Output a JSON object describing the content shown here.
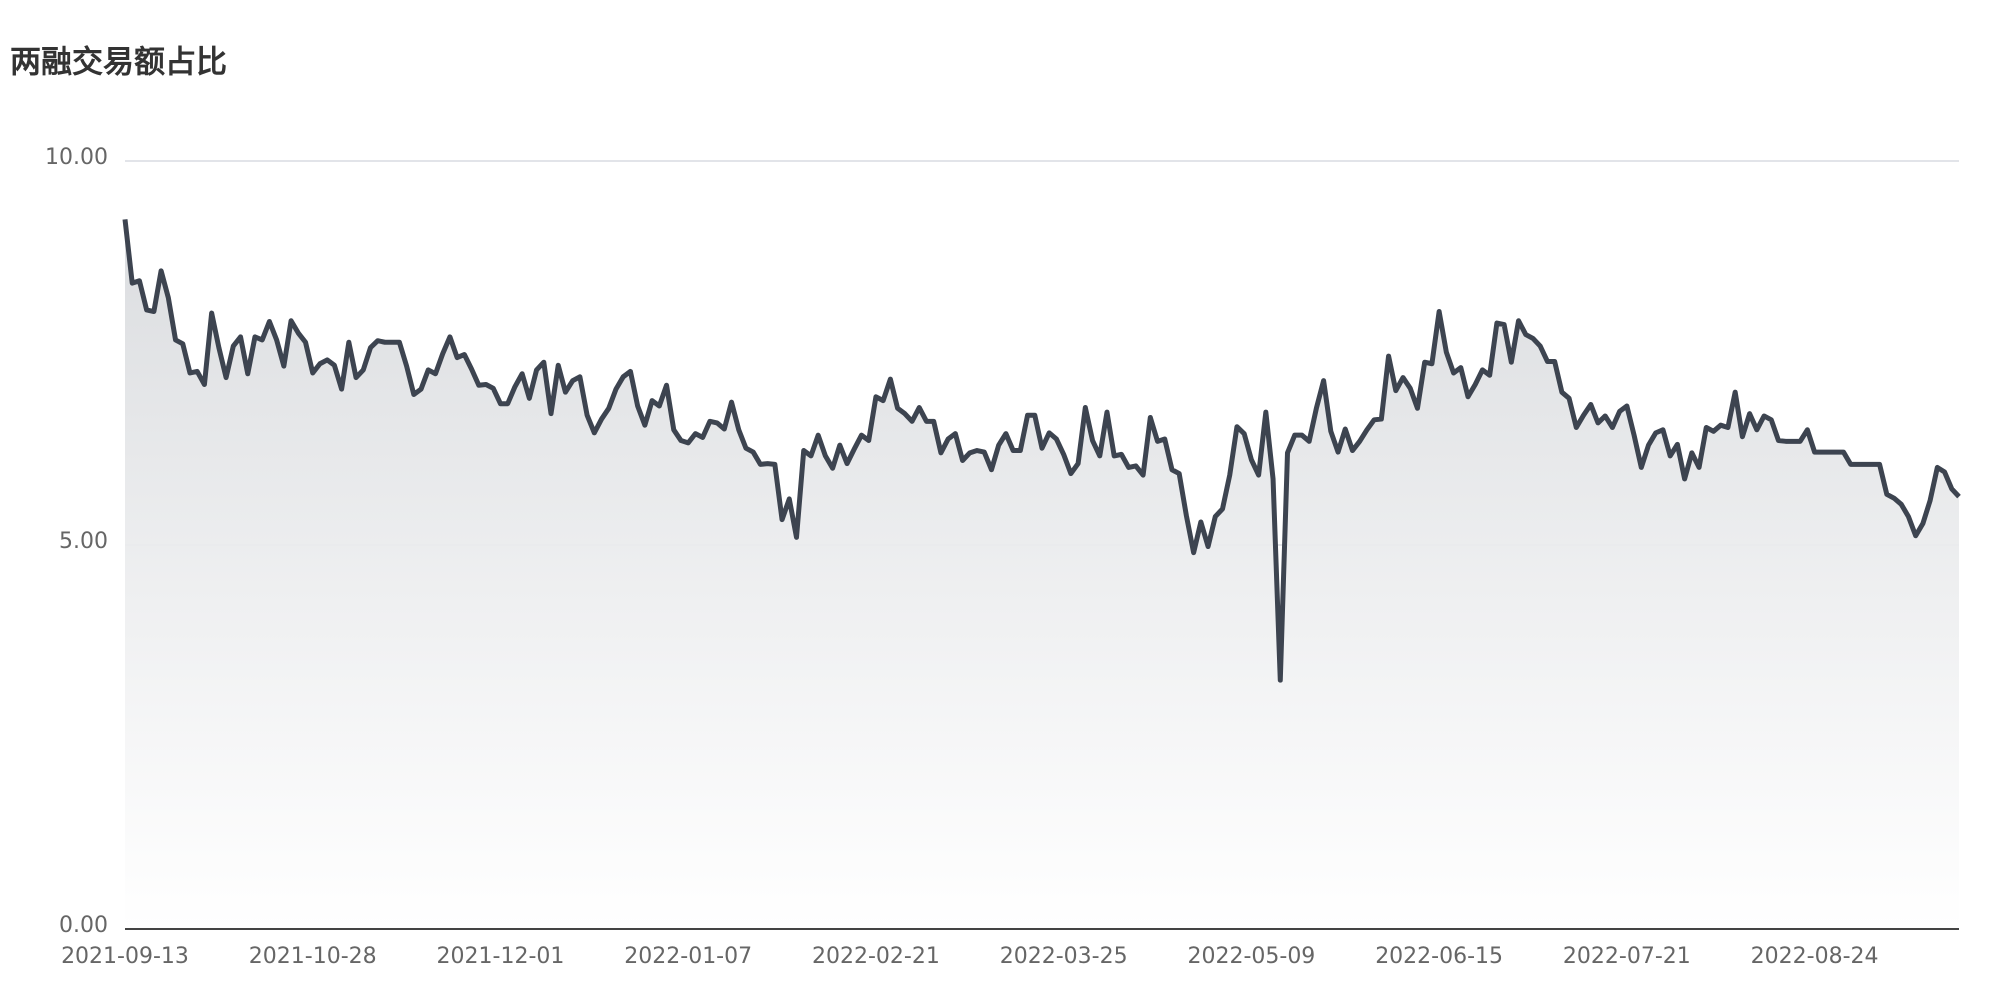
{
  "chart_data": {
    "type": "line",
    "title": "两融交易额占比",
    "categories": [
      "2021-09-13",
      null,
      null,
      null,
      null,
      null,
      null,
      null,
      null,
      null,
      null,
      null,
      null,
      null,
      null,
      null,
      null,
      null,
      null,
      null,
      null,
      null,
      null,
      null,
      null,
      null,
      "2021-10-28",
      null,
      null,
      null,
      null,
      null,
      null,
      null,
      null,
      null,
      null,
      null,
      null,
      null,
      null,
      null,
      null,
      null,
      null,
      null,
      null,
      null,
      null,
      null,
      null,
      null,
      "2021-12-01",
      null,
      null,
      null,
      null,
      null,
      null,
      null,
      null,
      null,
      null,
      null,
      null,
      null,
      null,
      null,
      null,
      null,
      null,
      null,
      null,
      null,
      null,
      null,
      null,
      null,
      "2022-01-07",
      null,
      null,
      null,
      null,
      null,
      null,
      null,
      null,
      null,
      null,
      null,
      null,
      null,
      null,
      null,
      null,
      null,
      null,
      null,
      null,
      null,
      null,
      null,
      null,
      null,
      "2022-02-21",
      null,
      null,
      null,
      null,
      null,
      null,
      null,
      null,
      null,
      null,
      null,
      null,
      null,
      null,
      null,
      null,
      null,
      null,
      null,
      null,
      null,
      null,
      null,
      null,
      null,
      "2022-03-25",
      null,
      null,
      null,
      null,
      null,
      null,
      null,
      null,
      null,
      null,
      null,
      null,
      null,
      null,
      null,
      null,
      null,
      null,
      null,
      null,
      null,
      null,
      null,
      null,
      null,
      "2022-05-09",
      null,
      null,
      null,
      null,
      null,
      null,
      null,
      null,
      null,
      null,
      null,
      null,
      null,
      null,
      null,
      null,
      null,
      null,
      null,
      null,
      null,
      null,
      null,
      null,
      null,
      "2022-06-15",
      null,
      null,
      null,
      null,
      null,
      null,
      null,
      null,
      null,
      null,
      null,
      null,
      null,
      null,
      null,
      null,
      null,
      null,
      null,
      null,
      null,
      null,
      null,
      null,
      null,
      "2022-07-21",
      null,
      null,
      null,
      null,
      null,
      null,
      null,
      null,
      null,
      null,
      null,
      null,
      null,
      null,
      null,
      null,
      null,
      null,
      null,
      null,
      null,
      null,
      null,
      null,
      null,
      "2022-08-24",
      null,
      null,
      null,
      null,
      null,
      null,
      null,
      null,
      null,
      null,
      null,
      null,
      null,
      null,
      null,
      null,
      null,
      null,
      null,
      null
    ],
    "values": [
      9.24,
      8.41,
      8.44,
      8.06,
      8.04,
      8.57,
      8.22,
      7.67,
      7.62,
      7.24,
      7.26,
      7.09,
      8.02,
      7.57,
      7.18,
      7.59,
      7.71,
      7.23,
      7.71,
      7.67,
      7.91,
      7.67,
      7.33,
      7.92,
      7.76,
      7.64,
      7.24,
      7.36,
      7.41,
      7.34,
      7.03,
      7.64,
      7.18,
      7.28,
      7.57,
      7.66,
      7.64,
      7.64,
      7.64,
      7.33,
      6.96,
      7.03,
      7.28,
      7.23,
      7.49,
      7.71,
      7.44,
      7.48,
      7.29,
      7.08,
      7.09,
      7.04,
      6.84,
      6.84,
      7.06,
      7.23,
      6.91,
      7.28,
      7.38,
      6.71,
      7.34,
      6.99,
      7.14,
      7.19,
      6.69,
      6.46,
      6.64,
      6.78,
      7.03,
      7.19,
      7.26,
      6.81,
      6.56,
      6.88,
      6.81,
      7.08,
      6.5,
      6.36,
      6.33,
      6.45,
      6.4,
      6.61,
      6.59,
      6.51,
      6.86,
      6.5,
      6.26,
      6.21,
      6.05,
      6.06,
      6.05,
      5.33,
      5.6,
      5.1,
      6.23,
      6.16,
      6.43,
      6.16,
      6.0,
      6.3,
      6.06,
      6.25,
      6.43,
      6.36,
      6.93,
      6.88,
      7.16,
      6.78,
      6.71,
      6.61,
      6.79,
      6.61,
      6.61,
      6.2,
      6.38,
      6.45,
      6.1,
      6.2,
      6.23,
      6.21,
      5.98,
      6.3,
      6.45,
      6.23,
      6.23,
      6.69,
      6.69,
      6.26,
      6.46,
      6.38,
      6.18,
      5.93,
      6.06,
      6.79,
      6.36,
      6.16,
      6.73,
      6.16,
      6.18,
      6.01,
      6.03,
      5.91,
      6.66,
      6.35,
      6.38,
      5.98,
      5.93,
      5.38,
      4.9,
      5.3,
      4.98,
      5.37,
      5.47,
      5.91,
      6.54,
      6.45,
      6.11,
      5.91,
      6.73,
      5.86,
      3.24,
      6.2,
      6.43,
      6.43,
      6.35,
      6.78,
      7.14,
      6.48,
      6.21,
      6.51,
      6.23,
      6.35,
      6.5,
      6.63,
      6.64,
      7.46,
      7.01,
      7.18,
      7.04,
      6.78,
      7.38,
      7.36,
      8.04,
      7.51,
      7.24,
      7.31,
      6.93,
      7.09,
      7.28,
      7.21,
      7.89,
      7.87,
      7.38,
      7.92,
      7.74,
      7.69,
      7.59,
      7.39,
      7.39,
      6.99,
      6.91,
      6.53,
      6.69,
      6.83,
      6.59,
      6.68,
      6.53,
      6.74,
      6.81,
      6.43,
      6.01,
      6.3,
      6.46,
      6.5,
      6.16,
      6.31,
      5.86,
      6.2,
      6.01,
      6.53,
      6.48,
      6.56,
      6.53,
      6.99,
      6.41,
      6.71,
      6.5,
      6.68,
      6.63,
      6.36,
      6.35,
      6.35,
      6.35,
      6.5,
      6.21,
      6.21,
      6.21,
      6.21,
      6.21,
      6.05,
      6.05,
      6.05,
      6.05,
      6.05,
      5.66,
      5.61,
      5.53,
      5.37,
      5.12,
      5.28,
      5.58,
      6.01,
      5.95,
      5.73,
      5.63
    ],
    "color": "#3d4450",
    "ylim": [
      0,
      10
    ],
    "yticks": [
      {
        "value": 0,
        "label": "0.00"
      },
      {
        "value": 5,
        "label": "5.00"
      },
      {
        "value": 10,
        "label": "10.00"
      }
    ],
    "grid": true
  }
}
